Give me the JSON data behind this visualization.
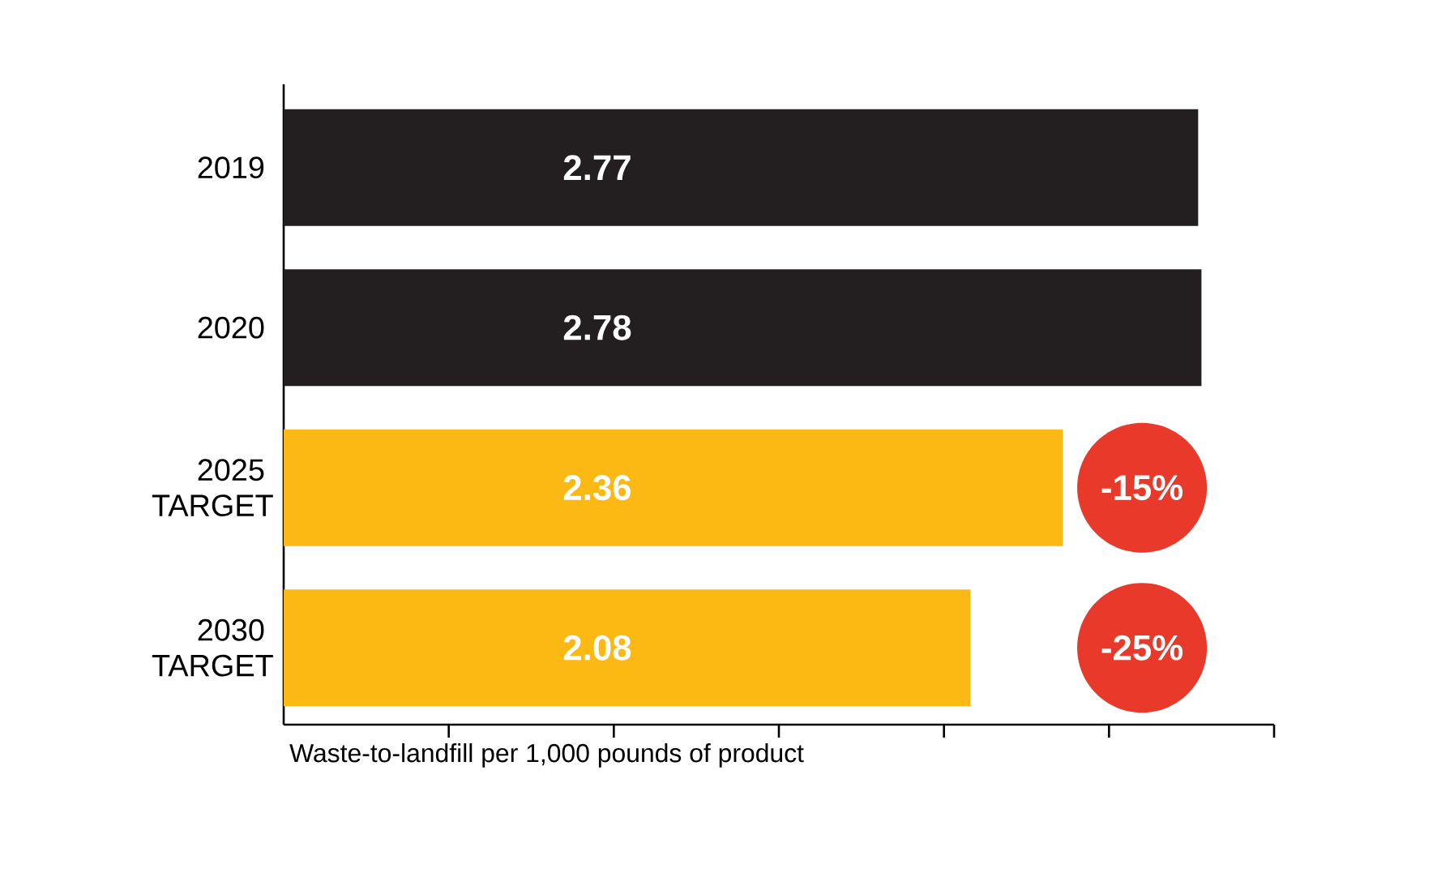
{
  "chart_data": {
    "type": "bar",
    "orientation": "horizontal",
    "categories": [
      "2019",
      "2020",
      "2025 TARGET",
      "2030 TARGET"
    ],
    "values": [
      2.77,
      2.78,
      2.36,
      2.08
    ],
    "colors": [
      "#231f20",
      "#231f20",
      "#fdb913",
      "#fdb913"
    ],
    "data_labels": true,
    "xlabel": "Waste-to-landfill per 1,000 pounds of product",
    "xlim": [
      0,
      3
    ],
    "xticks": [
      {
        "value": 0.5,
        "label": null
      },
      {
        "value": 1,
        "label": null
      },
      {
        "value": 1.5,
        "label": null
      },
      {
        "value": 2,
        "label": null
      },
      {
        "value": 2.5,
        "label": null
      },
      {
        "value": 3,
        "label": null
      }
    ],
    "tick_labels": "y",
    "annotations": [
      "-15%",
      "-25%"
    ],
    "grid": false
  }
}
